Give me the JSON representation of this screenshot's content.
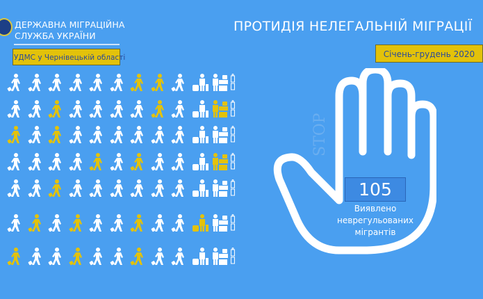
{
  "header": {
    "org_line1": "ДЕРЖАВНА МІГРАЦІЙНА",
    "org_line2": "СЛУЖБА УКРАЇНИ",
    "department": "УДМС у Чернівецькій області",
    "title": "ПРОТИДІЯ НЕЛЕГАЛЬНІЙ МІГРАЦІЇ",
    "period": "Січень-грудень 2020"
  },
  "infographic": {
    "stop_label": "STOP",
    "count": "105",
    "caption_line1": "Виявлено",
    "caption_line2": "неврегульованих",
    "caption_line3": "мігрантів",
    "icon_types": [
      "walker",
      "walker",
      "walker",
      "walker",
      "walker",
      "walker",
      "walker",
      "walker",
      "walker",
      "traveler-luggage",
      "passport-desk"
    ],
    "highlighted": [
      [
        6,
        7
      ],
      [
        2,
        7,
        10
      ],
      [
        0,
        2
      ],
      [
        4,
        6,
        10
      ],
      [
        2
      ],
      [
        1,
        3,
        6,
        9
      ],
      [
        0,
        3,
        6
      ]
    ]
  },
  "colors": {
    "background": "#4a9ff0",
    "highlight": "#e3c20a",
    "icon": "#ffffff"
  }
}
